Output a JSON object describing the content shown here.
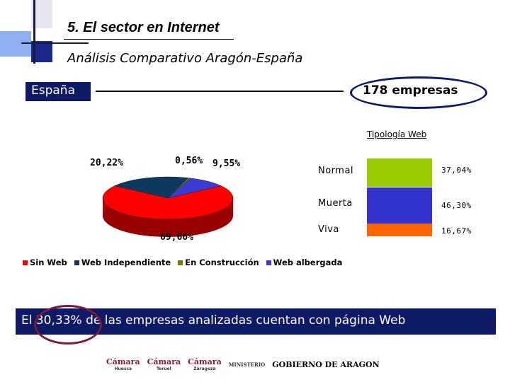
{
  "header": {
    "title": "5. El sector en Internet",
    "subtitle": "Análisis Comparativo Aragón-España"
  },
  "section": {
    "region_label": "España",
    "company_count": "178 empresas"
  },
  "chart_data": [
    {
      "type": "pie",
      "categories": [
        "Sin Web",
        "Web Independiente",
        "En Construcción",
        "Web albergada"
      ],
      "values": [
        69.66,
        20.22,
        0.56,
        9.55
      ],
      "labels": [
        "69,66%",
        "20,22%",
        "0,56%",
        "9,55%"
      ],
      "colors": [
        "#ff0000",
        "#0c3a5e",
        "#7a7a00",
        "#3b3bd6"
      ],
      "legend": "bottom"
    },
    {
      "type": "bar",
      "title": "Tipología Web",
      "categories": [
        "Normal",
        "Muerta",
        "Viva"
      ],
      "values": [
        37.04,
        46.3,
        16.67
      ],
      "labels": [
        "37,04%",
        "46,30%",
        "16,67%"
      ],
      "colors": [
        "#99cc00",
        "#3333cc",
        "#ff6600"
      ]
    }
  ],
  "banner": {
    "text": "El 30,33% de las empresas analizadas cuentan con página Web"
  },
  "footer": {
    "logos": [
      "Cámara",
      "Cámara",
      "Cámara",
      "MINISTERIO",
      "GOBIERNO DE ARAGON"
    ],
    "logo_subs": [
      "Huesca",
      "Teruel",
      "Zaragoza",
      "",
      ""
    ]
  }
}
